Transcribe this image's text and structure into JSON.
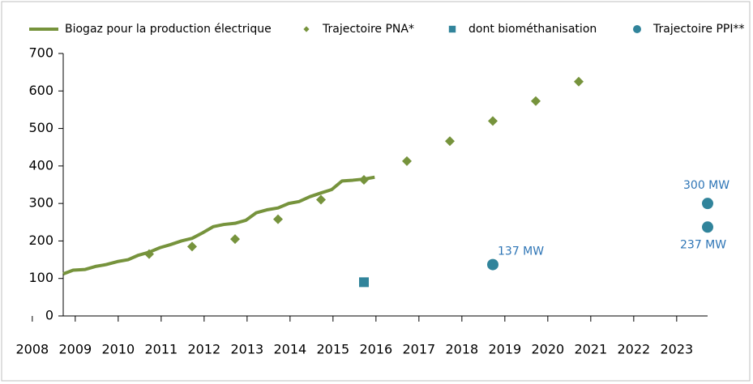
{
  "chart_data": {
    "type": "line",
    "xlim": [
      2008.72,
      2023.72
    ],
    "xticks": [
      2008,
      2009,
      2010,
      2011,
      2012,
      2013,
      2014,
      2015,
      2016,
      2017,
      2018,
      2019,
      2020,
      2021,
      2022,
      2023
    ],
    "ylim": [
      0,
      700
    ],
    "yticks": [
      0,
      100,
      200,
      300,
      400,
      500,
      600,
      700
    ],
    "grid": false,
    "legend": "top",
    "series": [
      {
        "name": "Biogaz pour la production électrique",
        "color": "#76933c",
        "marker": "line",
        "x": [
          2008.72,
          2008.95,
          2009.23,
          2009.47,
          2009.72,
          2009.98,
          2010.23,
          2010.47,
          2010.72,
          2010.97,
          2011.21,
          2011.47,
          2011.72,
          2011.97,
          2012.21,
          2012.46,
          2012.72,
          2012.97,
          2013.21,
          2013.46,
          2013.72,
          2013.97,
          2014.21,
          2014.46,
          2014.72,
          2014.97,
          2015.21,
          2015.46,
          2015.72,
          2015.97
        ],
        "values": [
          112,
          122,
          124,
          132,
          137,
          145,
          150,
          162,
          170,
          182,
          190,
          200,
          207,
          222,
          238,
          244,
          247,
          255,
          275,
          283,
          288,
          300,
          305,
          318,
          328,
          337,
          360,
          362,
          365,
          370
        ]
      },
      {
        "name": "Trajectoire PNA*",
        "color": "#76933c",
        "marker": "diamond",
        "x": [
          2010.72,
          2011.72,
          2012.72,
          2013.72,
          2014.72,
          2015.72,
          2016.72,
          2017.72,
          2018.72,
          2019.72,
          2020.72
        ],
        "values": [
          165,
          185,
          205,
          258,
          310,
          363,
          413,
          466,
          520,
          573,
          625
        ]
      },
      {
        "name": "dont biométhanisation",
        "color": "#31849b",
        "marker": "square",
        "x": [
          2015.72
        ],
        "values": [
          90
        ]
      },
      {
        "name": "Trajectoire PPI**",
        "color": "#31849b",
        "marker": "circle",
        "x": [
          2018.72,
          2023.72,
          2023.72
        ],
        "values": [
          137,
          300,
          237
        ],
        "value_labels": [
          "137 MW",
          "300 MW",
          "237 MW"
        ]
      }
    ]
  }
}
